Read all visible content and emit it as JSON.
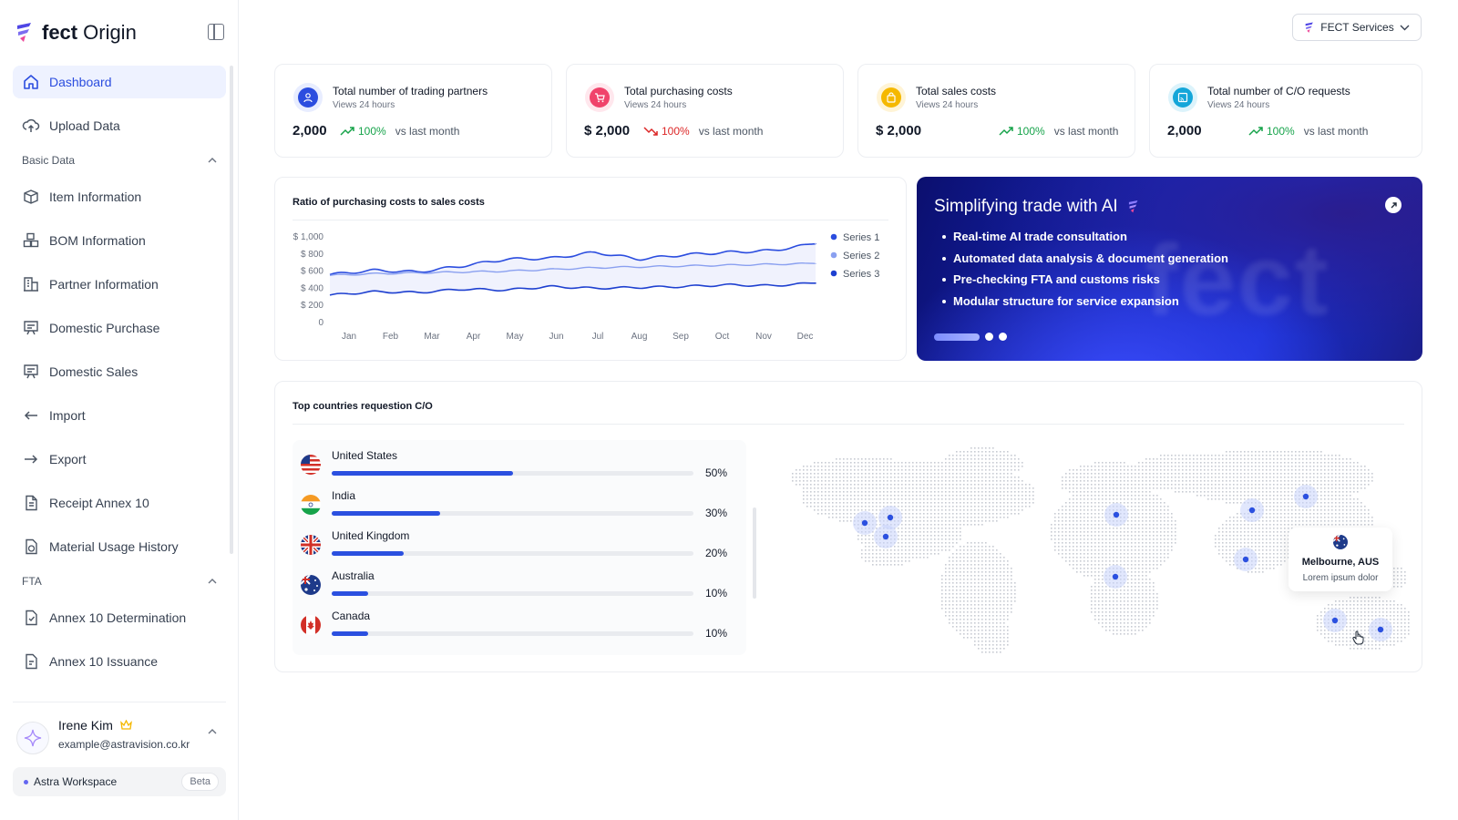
{
  "brand": {
    "name_bold": "fect",
    "name_light": "Origin"
  },
  "nav": {
    "dashboard": "Dashboard",
    "upload": "Upload Data",
    "basic_section": "Basic Data",
    "item": "Item Information",
    "bom": "BOM Information",
    "partner": "Partner Information",
    "dom_purchase": "Domestic Purchase",
    "dom_sales": "Domestic Sales",
    "import": "Import",
    "export": "Export",
    "receipt": "Receipt Annex 10",
    "material": "Material Usage History",
    "fta_section": "FTA",
    "annex_det": "Annex 10 Determination",
    "annex_iss": "Annex 10 Issuance"
  },
  "user": {
    "name": "Irene Kim",
    "email": "example@astravision.co.kr"
  },
  "workspace": {
    "label": "Astra Workspace",
    "badge": "Beta"
  },
  "header": {
    "services_label": "FECT Services"
  },
  "stats": [
    {
      "title": "Total number of trading partners",
      "sub": "Views 24 hours",
      "value": "2,000",
      "pct": "100%",
      "trend": "up",
      "vs": "vs last month",
      "color": "#2b4ddf"
    },
    {
      "title": "Total purchasing costs",
      "sub": "Views 24 hours",
      "value": "$ 2,000",
      "pct": "100%",
      "trend": "down",
      "vs": "vs last month",
      "color": "#f0436b"
    },
    {
      "title": "Total sales costs",
      "sub": "Views 24 hours",
      "value": "$ 2,000",
      "pct": "100%",
      "trend": "up",
      "vs": "vs last month",
      "color": "#f5b800"
    },
    {
      "title": "Total number of C/O requests",
      "sub": "Views 24 hours",
      "value": "2,000",
      "pct": "100%",
      "trend": "up",
      "vs": "vs last month",
      "color": "#14a6d9"
    }
  ],
  "chart_data": {
    "type": "line",
    "title": "Ratio of purchasing costs to sales costs",
    "categories": [
      "Jan",
      "Feb",
      "Mar",
      "Apr",
      "May",
      "Jun",
      "Jul",
      "Aug",
      "Sep",
      "Oct",
      "Nov",
      "Dec"
    ],
    "ylim": [
      0,
      1000
    ],
    "yticks": [
      0,
      200,
      400,
      600,
      800,
      1000
    ],
    "ytick_labels": [
      "0",
      "$ 200",
      "$ 400",
      "$ 600",
      "$ 800",
      "$ 1,000"
    ],
    "legend_position": "right",
    "series": [
      {
        "name": "Series 1",
        "color": "#2b4ddf",
        "values": [
          560,
          610,
          590,
          660,
          740,
          750,
          820,
          740,
          790,
          820,
          840,
          920
        ]
      },
      {
        "name": "Series 2",
        "color": "#8aa0f0",
        "values": [
          550,
          570,
          580,
          590,
          600,
          620,
          640,
          650,
          660,
          670,
          680,
          690
        ]
      },
      {
        "name": "Series 3",
        "color": "#1e40d0",
        "values": [
          320,
          360,
          350,
          390,
          380,
          420,
          400,
          410,
          420,
          440,
          430,
          460
        ]
      }
    ]
  },
  "promo": {
    "title": "Simplifying trade with AI",
    "bullets": [
      "Real-time AI trade consultation",
      "Automated data analysis & document generation",
      "Pre-checking FTA and customs risks",
      "Modular structure for service expansion"
    ]
  },
  "countries": {
    "title": "Top countries requestion C/O",
    "items": [
      {
        "name": "United States",
        "value": 50,
        "pct": "50%"
      },
      {
        "name": "India",
        "value": 30,
        "pct": "30%"
      },
      {
        "name": "United Kingdom",
        "value": 20,
        "pct": "20%"
      },
      {
        "name": "Australia",
        "value": 10,
        "pct": "10%"
      },
      {
        "name": "Canada",
        "value": 10,
        "pct": "10%"
      }
    ]
  },
  "map": {
    "tooltip_city": "Melbourne, AUS",
    "tooltip_desc": "Lorem ipsum dolor"
  }
}
